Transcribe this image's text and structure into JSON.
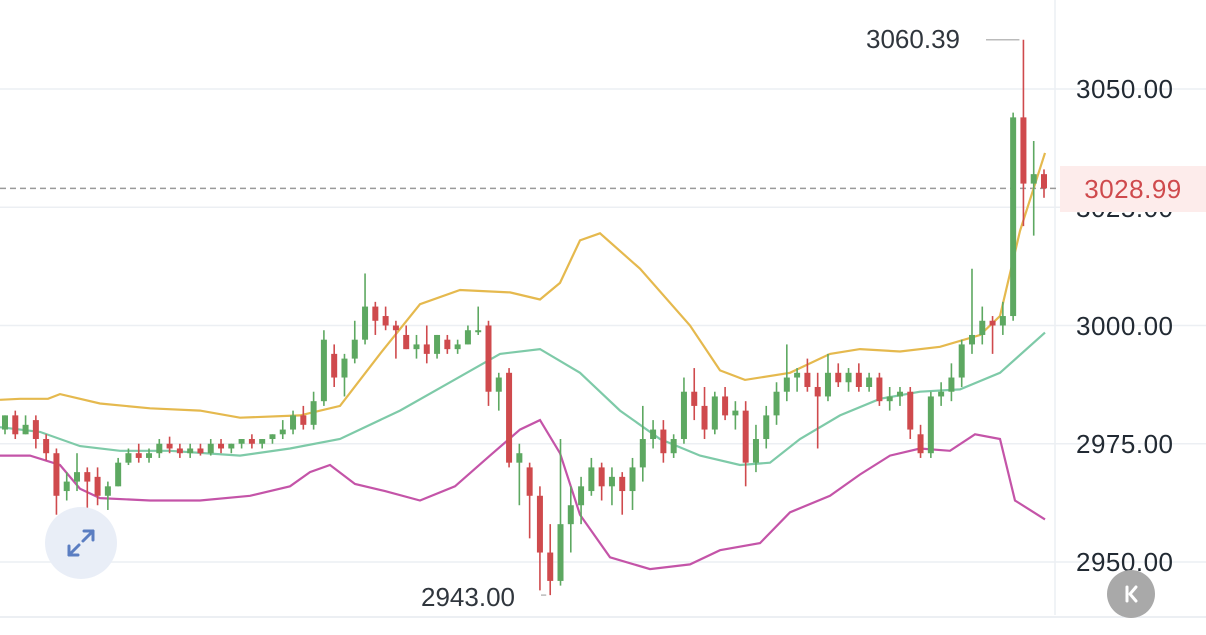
{
  "chart_data": {
    "type": "candlestick",
    "y_axis": {
      "ticks": [
        "3050.00",
        "3025.00",
        "3000.00",
        "2975.00",
        "2950.00"
      ],
      "tick_values": [
        3050,
        3025,
        3000,
        2975,
        2950
      ],
      "range": [
        2937,
        3066
      ]
    },
    "current_price": 3028.99,
    "current_price_label": "3028.99",
    "high_label": "3060.39",
    "low_label": "2943.00",
    "colors": {
      "up": "#5da861",
      "down": "#cf4a4d",
      "upper_band": "#e5b94e",
      "middle_band": "#7ecaa8",
      "lower_band": "#c454a8",
      "grid": "#eceff3",
      "current_line": "#9a9a9a"
    },
    "candles": [
      [
        2978.0,
        2981.0,
        2977.0,
        2981.0
      ],
      [
        2981.0,
        2982.0,
        2976.0,
        2977.0
      ],
      [
        2977.0,
        2981.0,
        2977.0,
        2979.0
      ],
      [
        2980.0,
        2981.0,
        2974.0,
        2976.0
      ],
      [
        2976.0,
        2977.0,
        2971.5,
        2973.0
      ],
      [
        2973.0,
        2974.0,
        2960.0,
        2964.0
      ],
      [
        2965.0,
        2969.0,
        2963.0,
        2967.0
      ],
      [
        2967.0,
        2973.0,
        2965.0,
        2969.0
      ],
      [
        2969.0,
        2970.0,
        2960.0,
        2967.0
      ],
      [
        2968.0,
        2970.0,
        2962.0,
        2964.0
      ],
      [
        2964.0,
        2967.0,
        2961.0,
        2966.0
      ],
      [
        2966.0,
        2972.0,
        2966.0,
        2971.0
      ],
      [
        2971.0,
        2974.0,
        2970.5,
        2973.0
      ],
      [
        2973.0,
        2975.0,
        2971.0,
        2972.0
      ],
      [
        2972.0,
        2974.0,
        2971.0,
        2973.0
      ],
      [
        2973.0,
        2976.0,
        2972.0,
        2975.0
      ],
      [
        2975.0,
        2976.5,
        2973.0,
        2974.0
      ],
      [
        2974.0,
        2975.0,
        2972.0,
        2973.0
      ],
      [
        2973.0,
        2975.0,
        2972.0,
        2974.0
      ],
      [
        2974.0,
        2975.0,
        2972.5,
        2973.0
      ],
      [
        2973.0,
        2976.0,
        2972.5,
        2975.0
      ],
      [
        2975.0,
        2976.0,
        2973.0,
        2974.0
      ],
      [
        2974.0,
        2975.0,
        2973.0,
        2975.0
      ],
      [
        2975.0,
        2976.0,
        2974.0,
        2976.0
      ],
      [
        2976.0,
        2977.0,
        2974.0,
        2975.0
      ],
      [
        2975.0,
        2976.0,
        2974.0,
        2976.0
      ],
      [
        2976.0,
        2977.0,
        2975.0,
        2977.0
      ],
      [
        2977.0,
        2980.0,
        2976.0,
        2978.0
      ],
      [
        2978.0,
        2982.0,
        2977.0,
        2981.0
      ],
      [
        2981.0,
        2983.0,
        2978.0,
        2979.0
      ],
      [
        2979.0,
        2986.0,
        2978.0,
        2984.0
      ],
      [
        2984.0,
        2999.0,
        2983.0,
        2997.0
      ],
      [
        2994.0,
        2996.0,
        2987.0,
        2989.0
      ],
      [
        2989.0,
        2994.0,
        2985.0,
        2993.0
      ],
      [
        2993.0,
        3001.0,
        2992.0,
        2997.0
      ],
      [
        2997.0,
        3011.0,
        2996.0,
        3004.0
      ],
      [
        3004.0,
        3005.0,
        2998.0,
        3001.0
      ],
      [
        3002.0,
        3004.0,
        2999.0,
        3000.0
      ],
      [
        3000.0,
        3001.0,
        2993.0,
        2999.0
      ],
      [
        2998.0,
        3000.0,
        2995.0,
        2995.0
      ],
      [
        2995.0,
        2998.0,
        2993.0,
        2996.0
      ],
      [
        2996.0,
        3000.0,
        2992.0,
        2994.0
      ],
      [
        2994.0,
        2998.0,
        2993.0,
        2998.0
      ],
      [
        2997.0,
        2998.0,
        2994.0,
        2995.0
      ],
      [
        2995.0,
        2997.0,
        2994.0,
        2996.0
      ],
      [
        2996.0,
        3000.0,
        2996.0,
        2999.0
      ],
      [
        2999.0,
        3004.0,
        2998.0,
        2999.0
      ],
      [
        3000.0,
        3001.0,
        2983.0,
        2986.0
      ],
      [
        2986.0,
        2990.0,
        2982.0,
        2989.0
      ],
      [
        2990.0,
        2991.0,
        2970.0,
        2971.0
      ],
      [
        2971.0,
        2975.0,
        2962.0,
        2973.0
      ],
      [
        2970.0,
        2971.0,
        2955.0,
        2964.0
      ],
      [
        2964.0,
        2966.0,
        2944.0,
        2952.0
      ],
      [
        2952.0,
        2958.0,
        2943.0,
        2946.0
      ],
      [
        2946.0,
        2976.0,
        2945.0,
        2958.0
      ],
      [
        2958.0,
        2966.0,
        2952.0,
        2962.0
      ],
      [
        2962.0,
        2968.0,
        2958.0,
        2966.0
      ],
      [
        2965.0,
        2972.0,
        2964.0,
        2970.0
      ],
      [
        2970.0,
        2971.0,
        2963.0,
        2966.0
      ],
      [
        2966.0,
        2970.0,
        2962.0,
        2968.0
      ],
      [
        2968.0,
        2969.0,
        2960.0,
        2965.0
      ],
      [
        2965.0,
        2972.0,
        2961.0,
        2970.0
      ],
      [
        2970.0,
        2983.0,
        2967.0,
        2976.0
      ],
      [
        2976.0,
        2980.0,
        2974.0,
        2978.0
      ],
      [
        2978.0,
        2980.0,
        2971.0,
        2973.0
      ],
      [
        2973.0,
        2977.0,
        2972.0,
        2976.0
      ],
      [
        2976.0,
        2989.0,
        2975.0,
        2986.0
      ],
      [
        2986.0,
        2991.0,
        2980.0,
        2983.0
      ],
      [
        2983.0,
        2987.0,
        2976.0,
        2978.0
      ],
      [
        2978.0,
        2986.0,
        2977.0,
        2985.0
      ],
      [
        2985.0,
        2987.0,
        2980.0,
        2981.0
      ],
      [
        2981.0,
        2984.0,
        2978.0,
        2982.0
      ],
      [
        2982.0,
        2984.0,
        2966.0,
        2971.0
      ],
      [
        2971.0,
        2979.0,
        2969.0,
        2976.0
      ],
      [
        2976.0,
        2983.0,
        2974.0,
        2981.0
      ],
      [
        2981.0,
        2988.0,
        2979.0,
        2986.0
      ],
      [
        2986.0,
        2996.0,
        2984.0,
        2989.0
      ],
      [
        2989.0,
        2991.0,
        2986.0,
        2990.0
      ],
      [
        2990.0,
        2993.0,
        2986.0,
        2987.0
      ],
      [
        2987.0,
        2990.0,
        2974.0,
        2985.0
      ],
      [
        2985.0,
        2994.0,
        2984.0,
        2990.0
      ],
      [
        2990.0,
        2992.0,
        2987.0,
        2988.0
      ],
      [
        2988.0,
        2991.0,
        2986.0,
        2990.0
      ],
      [
        2990.0,
        2992.0,
        2986.0,
        2987.0
      ],
      [
        2987.0,
        2990.0,
        2986.0,
        2989.0
      ],
      [
        2989.0,
        2990.0,
        2983.0,
        2984.0
      ],
      [
        2984.0,
        2987.0,
        2982.0,
        2985.0
      ],
      [
        2985.0,
        2987.0,
        2983.0,
        2986.0
      ],
      [
        2986.0,
        2987.0,
        2976.0,
        2978.0
      ],
      [
        2977.0,
        2979.0,
        2972.0,
        2973.0
      ],
      [
        2973.0,
        2986.0,
        2972.0,
        2985.0
      ],
      [
        2985.0,
        2988.0,
        2983.0,
        2986.0
      ],
      [
        2986.0,
        2992.0,
        2984.0,
        2989.0
      ],
      [
        2989.0,
        2997.0,
        2987.0,
        2996.0
      ],
      [
        2996.0,
        3012.0,
        2994.0,
        2998.0
      ],
      [
        2998.0,
        3004.0,
        2996.0,
        3001.0
      ],
      [
        3001.0,
        3002.0,
        2994.0,
        3000.0
      ],
      [
        3000.0,
        3005.0,
        2998.0,
        3002.0
      ],
      [
        3002.0,
        3045.0,
        3001.0,
        3044.0
      ],
      [
        3044.0,
        3060.4,
        3021.0,
        3030.0
      ],
      [
        3030.0,
        3039.0,
        3019.0,
        3032.0
      ],
      [
        3032.0,
        3033.0,
        3027.0,
        3029.0
      ]
    ],
    "upper_band": [
      [
        0,
        2984.3
      ],
      [
        20,
        2984.5
      ],
      [
        48,
        2984.5
      ],
      [
        60,
        2985.5
      ],
      [
        100,
        2983.5
      ],
      [
        150,
        2982.5
      ],
      [
        200,
        2982.0
      ],
      [
        240,
        2980.5
      ],
      [
        300,
        2981.0
      ],
      [
        340,
        2983.0
      ],
      [
        380,
        2994.0
      ],
      [
        420,
        3004.5
      ],
      [
        460,
        3007.5
      ],
      [
        510,
        3007.0
      ],
      [
        540,
        3005.5
      ],
      [
        560,
        3009.0
      ],
      [
        580,
        3018.0
      ],
      [
        600,
        3019.5
      ],
      [
        640,
        3012.0
      ],
      [
        690,
        3000.0
      ],
      [
        720,
        2990.5
      ],
      [
        745,
        2988.5
      ],
      [
        790,
        2990.0
      ],
      [
        830,
        2994.0
      ],
      [
        860,
        2995.0
      ],
      [
        900,
        2994.5
      ],
      [
        940,
        2995.5
      ],
      [
        980,
        2998.0
      ],
      [
        1000,
        3002.0
      ],
      [
        1020,
        3020.0
      ],
      [
        1045,
        3036.5
      ]
    ],
    "middle_band": [
      [
        0,
        2978.5
      ],
      [
        40,
        2977.5
      ],
      [
        80,
        2974.5
      ],
      [
        120,
        2973.5
      ],
      [
        170,
        2973.5
      ],
      [
        240,
        2972.5
      ],
      [
        290,
        2974.0
      ],
      [
        340,
        2976.0
      ],
      [
        400,
        2982.0
      ],
      [
        450,
        2988.0
      ],
      [
        500,
        2994.0
      ],
      [
        540,
        2995.0
      ],
      [
        580,
        2990.0
      ],
      [
        620,
        2982.0
      ],
      [
        660,
        2976.0
      ],
      [
        700,
        2972.5
      ],
      [
        740,
        2970.5
      ],
      [
        770,
        2971.0
      ],
      [
        800,
        2976.0
      ],
      [
        840,
        2981.0
      ],
      [
        880,
        2984.5
      ],
      [
        920,
        2986.0
      ],
      [
        960,
        2986.5
      ],
      [
        1000,
        2990.0
      ],
      [
        1045,
        2998.5
      ]
    ],
    "lower_band": [
      [
        0,
        2972.5
      ],
      [
        30,
        2972.5
      ],
      [
        60,
        2970.5
      ],
      [
        80,
        2965.5
      ],
      [
        100,
        2963.5
      ],
      [
        150,
        2963.0
      ],
      [
        200,
        2963.0
      ],
      [
        250,
        2964.0
      ],
      [
        290,
        2966.0
      ],
      [
        310,
        2969.0
      ],
      [
        330,
        2970.5
      ],
      [
        355,
        2966.5
      ],
      [
        385,
        2965.0
      ],
      [
        420,
        2963.0
      ],
      [
        455,
        2966.0
      ],
      [
        490,
        2972.5
      ],
      [
        520,
        2978.0
      ],
      [
        540,
        2980.0
      ],
      [
        560,
        2973.0
      ],
      [
        580,
        2960.0
      ],
      [
        610,
        2951.0
      ],
      [
        650,
        2948.5
      ],
      [
        690,
        2949.5
      ],
      [
        720,
        2952.5
      ],
      [
        760,
        2954.0
      ],
      [
        790,
        2960.5
      ],
      [
        830,
        2964.0
      ],
      [
        860,
        2968.5
      ],
      [
        890,
        2972.5
      ],
      [
        920,
        2974.0
      ],
      [
        950,
        2973.5
      ],
      [
        975,
        2977.0
      ],
      [
        1000,
        2976.0
      ],
      [
        1015,
        2963.0
      ],
      [
        1045,
        2959.0
      ]
    ]
  },
  "controls": {
    "expand_icon": "expand-arrows-icon",
    "collapse_icon": "collapse-k-icon"
  }
}
